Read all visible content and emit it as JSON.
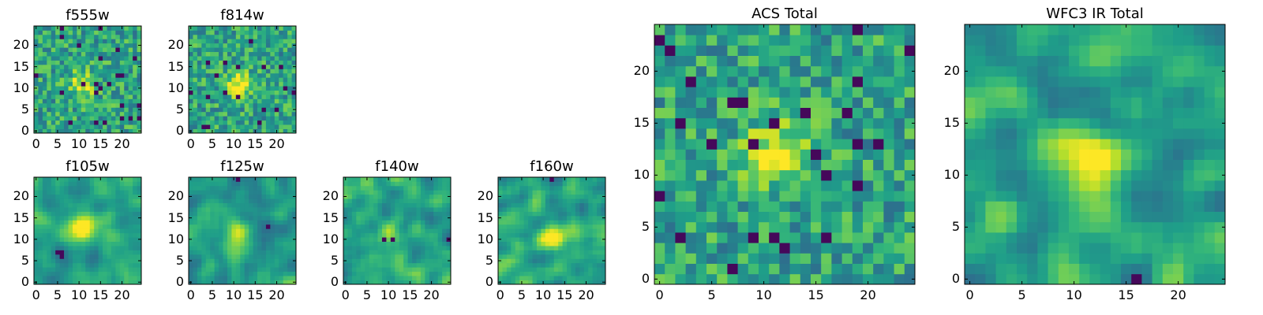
{
  "chart_data": [
    {
      "type": "heatmap",
      "title": "f555w",
      "xticks": [
        0,
        5,
        10,
        15,
        20
      ],
      "yticks": [
        0,
        5,
        10,
        15,
        20
      ],
      "xlim": [
        0,
        25
      ],
      "ylim": [
        0,
        25
      ],
      "colormap": "viridis",
      "grid_size": 25,
      "source_peak": [
        11,
        11
      ],
      "texture": "noisy"
    },
    {
      "type": "heatmap",
      "title": "f814w",
      "xticks": [
        0,
        5,
        10,
        15,
        20
      ],
      "yticks": [
        0,
        5,
        10,
        15,
        20
      ],
      "xlim": [
        0,
        25
      ],
      "ylim": [
        0,
        25
      ],
      "colormap": "viridis",
      "grid_size": 25,
      "source_peak": [
        11,
        11
      ],
      "texture": "noisy"
    },
    {
      "type": "heatmap",
      "title": "f105w",
      "xticks": [
        0,
        5,
        10,
        15,
        20
      ],
      "yticks": [
        0,
        5,
        10,
        15,
        20
      ],
      "xlim": [
        0,
        25
      ],
      "ylim": [
        0,
        25
      ],
      "colormap": "viridis",
      "grid_size": 25,
      "source_peak": [
        11,
        12
      ],
      "texture": "smooth"
    },
    {
      "type": "heatmap",
      "title": "f125w",
      "xticks": [
        0,
        5,
        10,
        15,
        20
      ],
      "yticks": [
        0,
        5,
        10,
        15,
        20
      ],
      "xlim": [
        0,
        25
      ],
      "ylim": [
        0,
        25
      ],
      "colormap": "viridis",
      "grid_size": 25,
      "source_peak": [
        11,
        11
      ],
      "texture": "smooth"
    },
    {
      "type": "heatmap",
      "title": "f140w",
      "xticks": [
        0,
        5,
        10,
        15,
        20
      ],
      "yticks": [
        0,
        5,
        10,
        15,
        20
      ],
      "xlim": [
        0,
        25
      ],
      "ylim": [
        0,
        25
      ],
      "colormap": "viridis",
      "grid_size": 25,
      "source_peak": [
        10,
        11
      ],
      "texture": "smooth"
    },
    {
      "type": "heatmap",
      "title": "f160w",
      "xticks": [
        0,
        5,
        10,
        15,
        20
      ],
      "yticks": [
        0,
        5,
        10,
        15,
        20
      ],
      "xlim": [
        0,
        25
      ],
      "ylim": [
        0,
        25
      ],
      "colormap": "viridis",
      "grid_size": 25,
      "source_peak": [
        12,
        11
      ],
      "texture": "smooth"
    },
    {
      "type": "heatmap",
      "title": "ACS Total",
      "xticks": [
        0,
        5,
        10,
        15,
        20
      ],
      "yticks": [
        0,
        5,
        10,
        15,
        20
      ],
      "xlim": [
        0,
        25
      ],
      "ylim": [
        0,
        25
      ],
      "colormap": "viridis",
      "grid_size": 25,
      "source_peak": [
        11,
        12
      ],
      "texture": "noisy"
    },
    {
      "type": "heatmap",
      "title": "WFC3 IR Total",
      "xticks": [
        0,
        5,
        10,
        15,
        20
      ],
      "yticks": [
        0,
        5,
        10,
        15,
        20
      ],
      "xlim": [
        0,
        25
      ],
      "ylim": [
        0,
        25
      ],
      "colormap": "viridis",
      "grid_size": 25,
      "source_peak": [
        11,
        11
      ],
      "texture": "smooth"
    }
  ]
}
